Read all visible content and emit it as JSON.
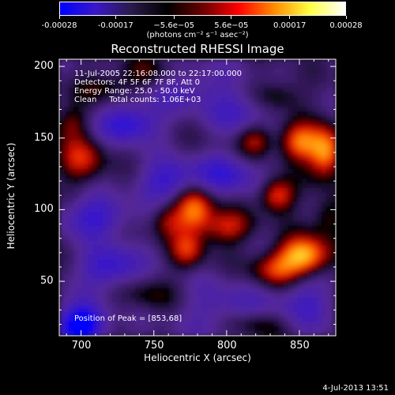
{
  "chart_data": {
    "type": "heatmap",
    "title": "Reconstructed RHESSI Image",
    "xlabel": "Heliocentric X (arcsec)",
    "ylabel": "Heliocentric Y (arcsec)",
    "xlim": [
      685,
      875
    ],
    "ylim": [
      12,
      205
    ],
    "xticks": [
      700,
      750,
      800,
      850
    ],
    "yticks": [
      50,
      100,
      150,
      200
    ],
    "colorbar": {
      "range": [
        -0.00028,
        0.00028
      ],
      "tick_values": [
        -0.00028,
        -0.00017,
        -5.6e-05,
        5.6e-05,
        0.00017,
        0.00028
      ],
      "tick_labels": [
        "-0.00028",
        "-0.00017",
        "−5.6e−05",
        "5.6e−05",
        "0.00017",
        "0.00028"
      ],
      "units": "(photons cm⁻² s⁻¹ asec⁻²)",
      "colors": [
        "#0000ff",
        "#3a18c8",
        "#2a1a4a",
        "#000000",
        "#6a0000",
        "#ff0000",
        "#ff8a00",
        "#ffff40",
        "#ffffff"
      ]
    },
    "annotations": [
      "11-Jul-2005 22:16:08.000 to 22:17:00.000",
      "Detectors: 4F 5F 6F 7F 8F, Att 0",
      "Energy Range: 25.0 - 50.0 keV",
      "Clean     Total counts: 1.06E+03"
    ],
    "peak_text": "Position of Peak = [853,68]",
    "peak": [
      853,
      68
    ],
    "features": [
      {
        "x": 733,
        "y": 160,
        "v": -0.6,
        "sx": 14,
        "sy": 9
      },
      {
        "x": 700,
        "y": 20,
        "v": -0.9,
        "sx": 12,
        "sy": 10
      },
      {
        "x": 760,
        "y": 120,
        "v": -0.5,
        "sx": 14,
        "sy": 10
      },
      {
        "x": 710,
        "y": 95,
        "v": -0.5,
        "sx": 16,
        "sy": 10
      },
      {
        "x": 720,
        "y": 60,
        "v": -0.55,
        "sx": 14,
        "sy": 10
      },
      {
        "x": 800,
        "y": 125,
        "v": -0.45,
        "sx": 16,
        "sy": 10
      },
      {
        "x": 775,
        "y": 185,
        "v": -0.3,
        "sx": 22,
        "sy": 12
      },
      {
        "x": 810,
        "y": 168,
        "v": -0.35,
        "sx": 14,
        "sy": 10
      },
      {
        "x": 835,
        "y": 180,
        "v": 0.3,
        "sx": 12,
        "sy": 8
      },
      {
        "x": 800,
        "y": 30,
        "v": -0.3,
        "sx": 22,
        "sy": 14
      },
      {
        "x": 855,
        "y": 35,
        "v": -0.35,
        "sx": 14,
        "sy": 12
      },
      {
        "x": 700,
        "y": 135,
        "v": 0.55,
        "sx": 11,
        "sy": 11
      },
      {
        "x": 693,
        "y": 160,
        "v": 0.35,
        "sx": 8,
        "sy": 8
      },
      {
        "x": 778,
        "y": 100,
        "v": 0.8,
        "sx": 9,
        "sy": 11
      },
      {
        "x": 773,
        "y": 72,
        "v": 0.55,
        "sx": 8,
        "sy": 9
      },
      {
        "x": 760,
        "y": 92,
        "v": 0.4,
        "sx": 8,
        "sy": 8
      },
      {
        "x": 800,
        "y": 88,
        "v": 0.55,
        "sx": 12,
        "sy": 8
      },
      {
        "x": 853,
        "y": 68,
        "v": 1.0,
        "sx": 12,
        "sy": 9
      },
      {
        "x": 833,
        "y": 58,
        "v": 0.55,
        "sx": 11,
        "sy": 8
      },
      {
        "x": 868,
        "y": 140,
        "v": 0.9,
        "sx": 8,
        "sy": 12
      },
      {
        "x": 850,
        "y": 147,
        "v": 0.75,
        "sx": 9,
        "sy": 9
      },
      {
        "x": 835,
        "y": 110,
        "v": 0.7,
        "sx": 8,
        "sy": 8
      },
      {
        "x": 820,
        "y": 148,
        "v": 0.5,
        "sx": 8,
        "sy": 8
      },
      {
        "x": 820,
        "y": 20,
        "v": 0.35,
        "sx": 14,
        "sy": 7
      },
      {
        "x": 745,
        "y": 195,
        "v": 0.3,
        "sx": 14,
        "sy": 8
      },
      {
        "x": 715,
        "y": 185,
        "v": 0.3,
        "sx": 12,
        "sy": 7
      },
      {
        "x": 745,
        "y": 40,
        "v": 0.25,
        "sx": 14,
        "sy": 8
      },
      {
        "x": 870,
        "y": 95,
        "v": 0.35,
        "sx": 8,
        "sy": 10
      }
    ]
  },
  "footer": "4-Jul-2013 13:51"
}
